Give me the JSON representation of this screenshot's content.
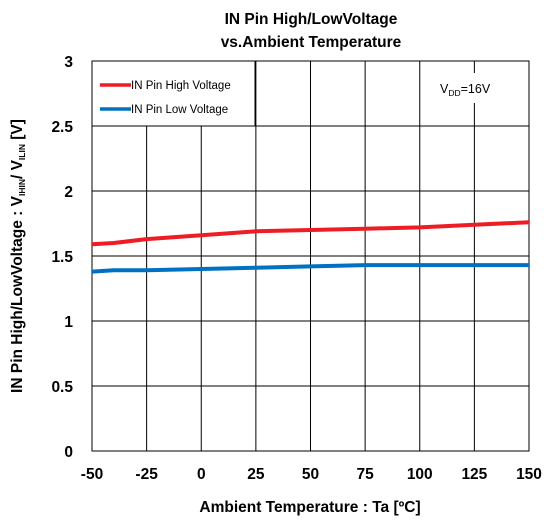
{
  "chart_data": {
    "type": "line",
    "title_line1": "IN Pin High/LowVoltage",
    "title_line2": "vs.Ambient Temperature",
    "xlabel": "Ambient Temperature : Ta [ºC]",
    "ylabel_prefix": "IN Pin High/LowVoltage : V",
    "ylabel_sub1": "IHIN",
    "ylabel_mid": "/ V",
    "ylabel_sub2": "ILIN",
    "ylabel_suffix": " [V]",
    "xlim": [
      -50,
      150
    ],
    "ylim": [
      0,
      3
    ],
    "x_ticks": [
      "-50",
      "-25",
      "0",
      "25",
      "50",
      "75",
      "100",
      "125",
      "150"
    ],
    "y_ticks": [
      "0",
      "0.5",
      "1",
      "1.5",
      "2",
      "2.5",
      "3"
    ],
    "x_tick_values": [
      -50,
      -25,
      0,
      25,
      50,
      75,
      100,
      125,
      150
    ],
    "y_tick_values": [
      0,
      0.5,
      1,
      1.5,
      2,
      2.5,
      3
    ],
    "grid": true,
    "legend_position": "top-left",
    "annotation": {
      "prefix": "V",
      "sub": "DD",
      "suffix": "=16V"
    },
    "series": [
      {
        "name": "IN Pin High Voltage",
        "color": "#ee1c24",
        "x": [
          -50,
          -40,
          -25,
          0,
          25,
          50,
          75,
          100,
          125,
          150
        ],
        "y": [
          1.59,
          1.6,
          1.63,
          1.66,
          1.69,
          1.7,
          1.71,
          1.72,
          1.74,
          1.76
        ]
      },
      {
        "name": "IN Pin Low Voltage",
        "color": "#0070c0",
        "x": [
          -50,
          -40,
          -25,
          0,
          25,
          50,
          75,
          100,
          125,
          150
        ],
        "y": [
          1.38,
          1.39,
          1.39,
          1.4,
          1.41,
          1.42,
          1.43,
          1.43,
          1.43,
          1.43
        ]
      }
    ]
  }
}
